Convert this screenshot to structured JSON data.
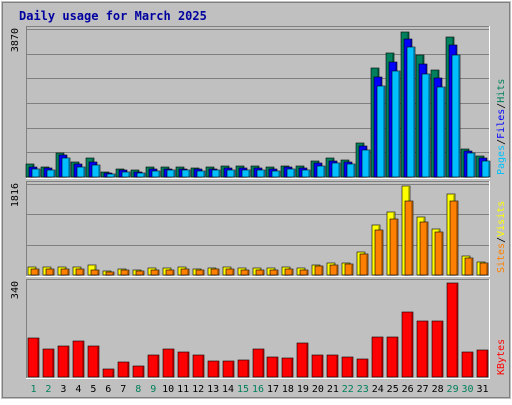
{
  "colors": {
    "outer_bg": "#c0c0c0",
    "plot_bg": "#c0c0c0",
    "grid": "#808080",
    "title": "#0000a0",
    "axis_text": "#000000",
    "hits": "#00805c",
    "files": "#0000ff",
    "pages": "#00c0ff",
    "visits": "#ffff00",
    "sites": "#ff8000",
    "kbytes": "#ff0000",
    "label_hits": "#00805c",
    "label_files": "#0000ff",
    "label_pages": "#00c0ff",
    "label_visits": "#ffff00",
    "label_sites": "#ff8000",
    "label_kbytes": "#ff0000",
    "weekend_day": "#00805c",
    "weekday_day": "#000000",
    "bar_outline": "#000000"
  },
  "chart_data": {
    "title": "Daily usage for March 2025",
    "days": [
      "1",
      "2",
      "3",
      "4",
      "5",
      "6",
      "7",
      "8",
      "9",
      "10",
      "11",
      "12",
      "13",
      "14",
      "15",
      "16",
      "17",
      "18",
      "19",
      "20",
      "21",
      "22",
      "23",
      "24",
      "25",
      "26",
      "27",
      "28",
      "29",
      "30",
      "31"
    ],
    "weekend_days": [
      "1",
      "2",
      "8",
      "9",
      "15",
      "16",
      "22",
      "23",
      "29",
      "30"
    ],
    "panels": [
      {
        "type": "bar",
        "max_label": "3870",
        "ylim": [
          0,
          3870
        ],
        "grid": true,
        "legend_parts": [
          "Hits",
          "Files",
          "Pages"
        ],
        "series": [
          {
            "name": "Hits",
            "values": [
              330,
              270,
              630,
              390,
              490,
              130,
              210,
              170,
              250,
              270,
              250,
              240,
              260,
              300,
              280,
              280,
              260,
              300,
              280,
              410,
              500,
              440,
              890,
              2840,
              3230,
              3790,
              3190,
              2810,
              3660,
              740,
              550
            ]
          },
          {
            "name": "Files",
            "values": [
              260,
              230,
              570,
              330,
              400,
              110,
              170,
              140,
              200,
              220,
              210,
              200,
              210,
              240,
              230,
              230,
              200,
              250,
              230,
              360,
              430,
              390,
              800,
              2620,
              3000,
              3600,
              2960,
              2590,
              3450,
              690,
              490
            ]
          },
          {
            "name": "Pages",
            "values": [
              200,
              180,
              500,
              260,
              320,
              90,
              130,
              110,
              160,
              180,
              170,
              160,
              170,
              190,
              180,
              180,
              150,
              200,
              180,
              300,
              360,
              330,
              700,
              2380,
              2760,
              3390,
              2700,
              2360,
              3200,
              620,
              420
            ]
          }
        ]
      },
      {
        "type": "bar",
        "max_label": "1816",
        "ylim": [
          0,
          1816
        ],
        "grid": true,
        "legend_parts": [
          "Visits",
          "Sites"
        ],
        "series": [
          {
            "name": "Visits",
            "values": [
              160,
              150,
              150,
              160,
              200,
              80,
              110,
              90,
              130,
              140,
              150,
              120,
              140,
              150,
              130,
              140,
              130,
              150,
              130,
              200,
              230,
              240,
              460,
              1000,
              1260,
              1780,
              1160,
              920,
              1610,
              370,
              260
            ]
          },
          {
            "name": "Sites",
            "values": [
              120,
              110,
              110,
              120,
              100,
              60,
              90,
              70,
              100,
              100,
              110,
              90,
              110,
              110,
              100,
              100,
              100,
              110,
              100,
              170,
              200,
              210,
              420,
              890,
              1120,
              1470,
              1060,
              850,
              1480,
              330,
              230
            ]
          }
        ]
      },
      {
        "type": "bar",
        "max_label": "340",
        "ylim": [
          0,
          340
        ],
        "grid": false,
        "legend_parts": [
          "KBytes"
        ],
        "series": [
          {
            "name": "KBytes",
            "values": [
              138,
              100,
              110,
              128,
              110,
              28,
              52,
              40,
              80,
              102,
              90,
              78,
              58,
              58,
              60,
              102,
              70,
              68,
              120,
              80,
              80,
              72,
              64,
              142,
              142,
              232,
              202,
              202,
              335,
              90,
              95
            ]
          }
        ]
      }
    ]
  }
}
